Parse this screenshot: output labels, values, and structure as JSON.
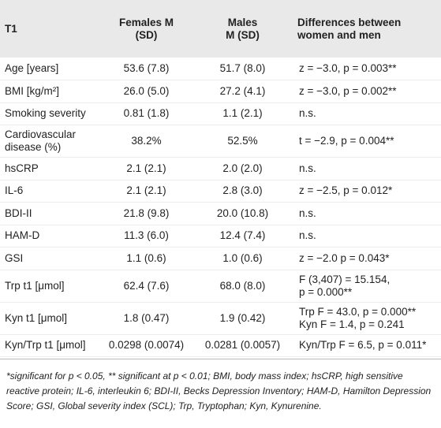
{
  "table": {
    "header": [
      [
        "T1"
      ],
      [
        "Females M",
        "(SD)"
      ],
      [
        "Males",
        "M (SD)"
      ],
      [
        "Differences between",
        "women and men"
      ]
    ],
    "rows": [
      [
        [
          "Age [years]"
        ],
        [
          "53.6 (7.8)"
        ],
        [
          "51.7 (8.0)"
        ],
        [
          "z = −3.0, p = 0.003**"
        ]
      ],
      [
        [
          "BMI [kg/m²]"
        ],
        [
          "26.0 (5.0)"
        ],
        [
          "27.2 (4.1)"
        ],
        [
          "z = −3.0, p = 0.002**"
        ]
      ],
      [
        [
          "Smoking severity"
        ],
        [
          "0.81 (1.8)"
        ],
        [
          "1.1 (2.1)"
        ],
        [
          "n.s."
        ]
      ],
      [
        [
          "Cardiovascular",
          "disease (%)"
        ],
        [
          "38.2%"
        ],
        [
          "52.5%"
        ],
        [
          "t = −2.9, p = 0.004**"
        ]
      ],
      [
        [
          "hsCRP"
        ],
        [
          "2.1 (2.1)"
        ],
        [
          "2.0 (2.0)"
        ],
        [
          "n.s."
        ]
      ],
      [
        [
          "IL-6"
        ],
        [
          "2.1 (2.1)"
        ],
        [
          "2.8 (3.0)"
        ],
        [
          "z = −2.5, p = 0.012*"
        ]
      ],
      [
        [
          "BDI-II"
        ],
        [
          "21.8 (9.8)"
        ],
        [
          "20.0 (10.8)"
        ],
        [
          "n.s."
        ]
      ],
      [
        [
          "HAM-D"
        ],
        [
          "11.3 (6.0)"
        ],
        [
          "12.4 (7.4)"
        ],
        [
          "n.s."
        ]
      ],
      [
        [
          "GSI"
        ],
        [
          "1.1 (0.6)"
        ],
        [
          "1.0 (0.6)"
        ],
        [
          "z = −2.0 p = 0.043*"
        ]
      ],
      [
        [
          "Trp t1 [μmol]"
        ],
        [
          "62.4 (7.6)"
        ],
        [
          "68.0 (8.0)"
        ],
        [
          "F (3,407) = 15.154,",
          "p = 0.000**"
        ]
      ],
      [
        [
          "Kyn t1 [μmol]"
        ],
        [
          "1.8 (0.47)"
        ],
        [
          "1.9 (0.42)"
        ],
        [
          "Trp F = 43.0, p = 0.000**",
          "Kyn F = 1.4, p = 0.241"
        ]
      ],
      [
        [
          "Kyn/Trp t1 [μmol]"
        ],
        [
          "0.0298 (0.0074)"
        ],
        [
          "0.0281 (0.0057)"
        ],
        [
          "Kyn/Trp F = 6.5, p = 0.011*"
        ]
      ]
    ],
    "footnote": "*significant for p < 0.05, ** significant at p < 0.01; BMI, body mass index; hsCRP, high sensitive reactive protein; IL-6, interleukin 6; BDI-II, Becks Depression Inventory; HAM-D, Hamilton Depression Score; GSI, Global severity index (SCL); Trp, Tryptophan; Kyn, Kynurenine."
  }
}
